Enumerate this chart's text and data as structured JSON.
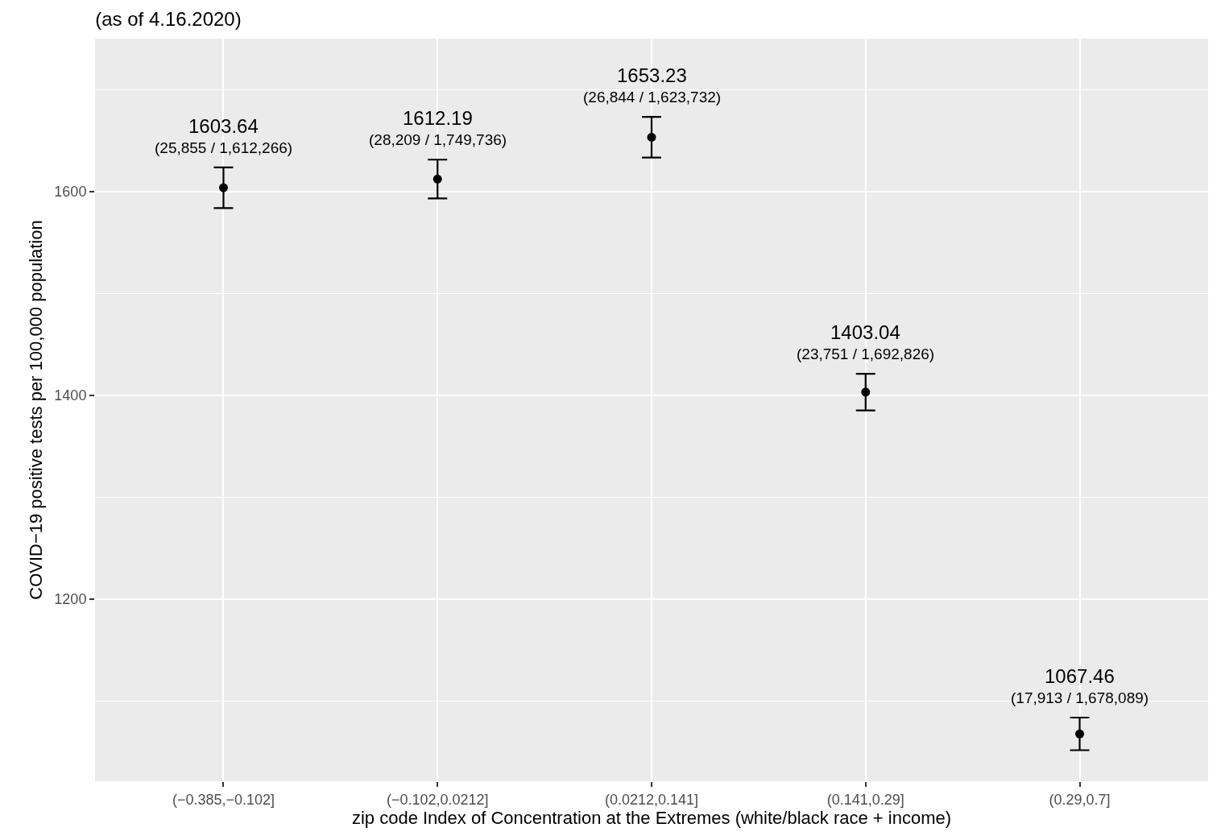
{
  "chart_data": {
    "type": "scatter",
    "title": "(as of 4.16.2020)",
    "xlabel": "zip code Index of Concentration at the Extremes (white/black race + income)",
    "ylabel": "COVID−19 positive tests per 100,000 population",
    "categories": [
      "(−0.385,−0.102]",
      "(−0.102,0.0212]",
      "(0.0212,0.141]",
      "(0.141,0.29]",
      "(0.29,0.7]"
    ],
    "values": [
      1603.64,
      1612.19,
      1653.23,
      1403.04,
      1067.46
    ],
    "errors": [
      20,
      19,
      20,
      18,
      16
    ],
    "data_labels": true,
    "annotations": [
      {
        "text": "(25,855 / 1,612,266)",
        "x": "(−0.385,−0.102]",
        "y": 1603.64
      },
      {
        "text": "(28,209 / 1,749,736)",
        "x": "(−0.102,0.0212]",
        "y": 1612.19
      },
      {
        "text": "(26,844 / 1,623,732)",
        "x": "(0.0212,0.141]",
        "y": 1653.23
      },
      {
        "text": "(23,751 / 1,692,826)",
        "x": "(0.141,0.29]",
        "y": 1403.04
      },
      {
        "text": "(17,913 / 1,678,089)",
        "x": "(0.29,0.7]",
        "y": 1067.46
      }
    ],
    "color": "#000000",
    "marker": "circle",
    "ylim": [
      1021,
      1750
    ],
    "yticks": [
      {
        "value": 1100,
        "label": null
      },
      1200,
      {
        "value": 1300,
        "label": null
      },
      1400,
      {
        "value": 1500,
        "label": null
      },
      1600,
      {
        "value": 1700,
        "label": null
      }
    ],
    "grid": true
  }
}
